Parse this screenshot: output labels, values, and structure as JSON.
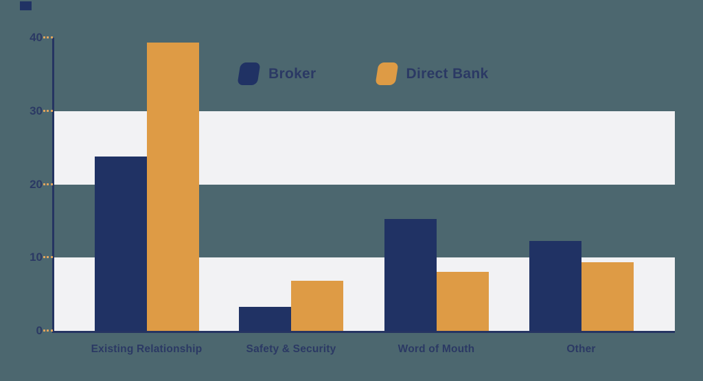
{
  "chart_data": {
    "type": "bar",
    "title": "",
    "categories": [
      "Existing Relationship",
      "Safety & Security",
      "Word of Mouth",
      "Other"
    ],
    "series": [
      {
        "name": "Broker",
        "color": "#203264",
        "values": [
          23.8,
          3.3,
          15.3,
          12.3
        ]
      },
      {
        "name": "Direct Bank",
        "color": "#DE9B45",
        "values": [
          39.3,
          6.8,
          8.1,
          9.4
        ]
      }
    ],
    "xlabel": "",
    "ylabel": "",
    "ylim": [
      0,
      40
    ],
    "yticks": [
      40,
      30,
      20,
      10,
      0
    ],
    "grid_bands": [
      [
        30,
        20
      ],
      [
        10,
        0
      ]
    ],
    "legend_position": "top-center",
    "grid": "alternating-horizontal-bands",
    "colors": {
      "background": "#4C676F",
      "band": "#F2F2F4",
      "axis": "#253462",
      "tick_dash": "#DFA45E",
      "text": "#2B3964"
    }
  }
}
